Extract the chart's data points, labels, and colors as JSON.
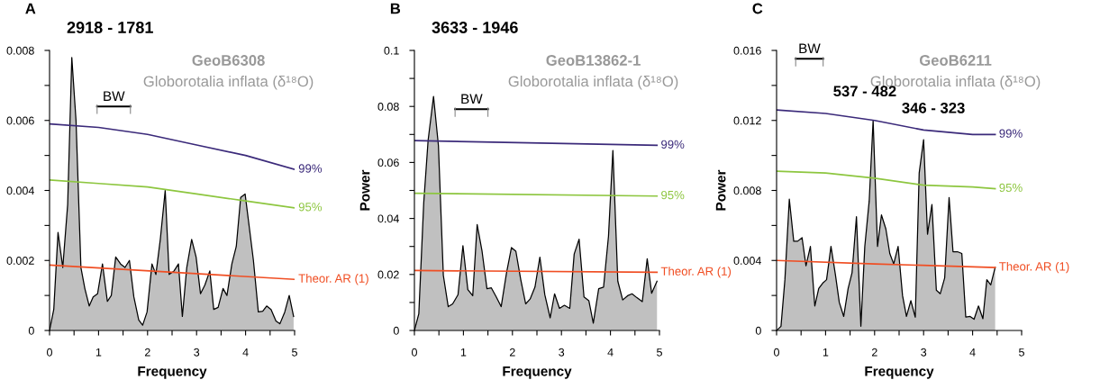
{
  "chart_data": [
    {
      "type": "line",
      "title": "2918 - 1781",
      "xlabel": "Frequency",
      "annotations": [
        "A",
        "GeoB6308",
        "Globorotalia inflata (δ¹⁸O)",
        "BW"
      ],
      "xlim": [
        0,
        5
      ],
      "ylim": [
        0,
        0.008
      ],
      "xticks": [
        0,
        {
          "value": 0.5,
          "label": null
        },
        1,
        {
          "value": 1.5,
          "label": null
        },
        2,
        {
          "value": 2.5,
          "label": null
        },
        3,
        {
          "value": 3.5,
          "label": null
        },
        4,
        {
          "value": 4.5,
          "label": null
        },
        5
      ],
      "yticks": [
        0,
        {
          "value": 0.001,
          "label": null
        },
        0.002,
        {
          "value": 0.003,
          "label": null
        },
        0.004,
        {
          "value": 0.005,
          "label": null
        },
        0.006,
        {
          "value": 0.007,
          "label": null
        },
        0.008
      ],
      "series": [
        {
          "type": "area",
          "color": "#c0c0c0",
          "x": [
            0,
            0.086,
            0.173,
            0.27,
            0.37,
            0.454,
            0.54,
            0.64,
            0.72,
            0.81,
            0.89,
            0.98,
            1.08,
            1.18,
            1.26,
            1.35,
            1.45,
            1.54,
            1.63,
            1.72,
            1.82,
            1.9,
            1.99,
            2.09,
            2.17,
            2.26,
            2.36,
            2.44,
            2.54,
            2.63,
            2.71,
            2.8,
            2.9,
            2.99,
            3.08,
            3.17,
            3.27,
            3.35,
            3.44,
            3.54,
            3.62,
            3.72,
            3.81,
            3.9,
            3.99,
            4.08,
            4.16,
            4.26,
            4.35,
            4.43,
            4.52,
            4.62,
            4.7,
            4.8,
            4.89,
            4.98
          ],
          "values": [
            0,
            0.0006,
            0.0028,
            0.0018,
            0.0036,
            0.0078,
            0.006,
            0.0018,
            0.0012,
            0.0007,
            0.00096,
            0.00105,
            0.0019,
            0.00083,
            0.001,
            0.0021,
            0.0019,
            0.0018,
            0.002,
            0.00096,
            0.0003,
            0.00015,
            0.00053,
            0.0019,
            0.0016,
            0.0026,
            0.004,
            0.0016,
            0.0017,
            0.0019,
            0.0004,
            0.0018,
            0.0026,
            0.0021,
            0.00105,
            0.0013,
            0.0017,
            0.0006,
            0.00066,
            0.0012,
            0.001,
            0.0019,
            0.0024,
            0.0038,
            0.0039,
            0.0029,
            0.002,
            0.00053,
            0.00055,
            0.0007,
            0.0006,
            0.00027,
            0.00019,
            0.00053,
            0.001,
            0.0004
          ]
        },
        {
          "type": "line",
          "name": "99%",
          "color": "#3b2a7a",
          "x": [
            0,
            1,
            2,
            3,
            4,
            5
          ],
          "values": [
            0.0059,
            0.0058,
            0.0056,
            0.0053,
            0.005,
            0.0046
          ]
        },
        {
          "type": "line",
          "name": "95%",
          "color": "#8dc63f",
          "x": [
            0,
            1,
            2,
            3,
            4,
            5
          ],
          "values": [
            0.0043,
            0.0042,
            0.0041,
            0.0039,
            0.0037,
            0.0035
          ]
        },
        {
          "type": "line",
          "name": "Theor. AR (1)",
          "color": "#f04e23",
          "x": [
            0,
            5
          ],
          "values": [
            0.00187,
            0.00146
          ]
        }
      ]
    },
    {
      "type": "line",
      "title": "3633 - 1946",
      "xlabel": "Frequency",
      "ylabel": "Power",
      "annotations": [
        "B",
        "GeoB13862-1",
        "Globorotalia inflata (δ¹⁸O)",
        "BW"
      ],
      "xlim": [
        0,
        5
      ],
      "ylim": [
        0,
        0.1
      ],
      "xticks": [
        0,
        {
          "value": 0.5,
          "label": null
        },
        1,
        {
          "value": 1.5,
          "label": null
        },
        2,
        {
          "value": 2.5,
          "label": null
        },
        3,
        {
          "value": 3.5,
          "label": null
        },
        4,
        {
          "value": 4.5,
          "label": null
        },
        5
      ],
      "yticks": [
        0,
        {
          "value": 0.01,
          "label": null
        },
        0.02,
        {
          "value": 0.03,
          "label": null
        },
        0.04,
        {
          "value": 0.05,
          "label": null
        },
        0.06,
        {
          "value": 0.07,
          "label": null
        },
        0.08,
        {
          "value": 0.09,
          "label": null
        },
        0.1
      ],
      "series": [
        {
          "type": "area",
          "color": "#c0c0c0",
          "x": [
            0,
            0.09,
            0.19,
            0.28,
            0.39,
            0.49,
            0.59,
            0.69,
            0.78,
            0.89,
            0.99,
            1.09,
            1.19,
            1.28,
            1.38,
            1.48,
            1.57,
            1.67,
            1.77,
            1.88,
            1.98,
            2.07,
            2.17,
            2.27,
            2.36,
            2.46,
            2.56,
            2.66,
            2.77,
            2.86,
            2.96,
            3.06,
            3.17,
            3.26,
            3.36,
            3.46,
            3.56,
            3.65,
            3.76,
            3.86,
            3.96,
            4.05,
            4.15,
            4.25,
            4.35,
            4.44,
            4.54,
            4.65,
            4.75,
            4.84,
            4.95
          ],
          "values": [
            0,
            0.006,
            0.0455,
            0.068,
            0.0836,
            0.066,
            0.0197,
            0.0085,
            0.0095,
            0.0128,
            0.0303,
            0.0146,
            0.0124,
            0.0378,
            0.0283,
            0.0149,
            0.0152,
            0.012,
            0.0085,
            0.0206,
            0.0296,
            0.0283,
            0.0181,
            0.0095,
            0.0112,
            0.0155,
            0.0262,
            0.0128,
            0.0045,
            0.0131,
            0.0079,
            0.009,
            0.0079,
            0.0273,
            0.0326,
            0.012,
            0.0106,
            0.0026,
            0.0149,
            0.0155,
            0.0337,
            0.0643,
            0.0176,
            0.0109,
            0.0124,
            0.0131,
            0.0117,
            0.0103,
            0.0256,
            0.0133,
            0.0176
          ]
        },
        {
          "type": "line",
          "name": "99%",
          "color": "#3b2a7a",
          "x": [
            0,
            4.95
          ],
          "values": [
            0.0678,
            0.0661
          ]
        },
        {
          "type": "line",
          "name": "95%",
          "color": "#8dc63f",
          "x": [
            0,
            4.95
          ],
          "values": [
            0.049,
            0.048
          ]
        },
        {
          "type": "line",
          "name": "Theor. AR (1)",
          "color": "#f04e23",
          "x": [
            0,
            4.95
          ],
          "values": [
            0.0214,
            0.0208
          ]
        }
      ]
    },
    {
      "type": "line",
      "xlabel": "Frequency",
      "ylabel": "Power",
      "annotations": [
        "C",
        "GeoB6211",
        "Globorotalia inflata (δ¹⁸O)",
        "BW",
        "537 - 482",
        "346 - 323"
      ],
      "xlim": [
        0,
        5
      ],
      "ylim": [
        0,
        0.016
      ],
      "xticks": [
        0,
        {
          "value": 0.5,
          "label": null
        },
        1,
        {
          "value": 1.5,
          "label": null
        },
        2,
        {
          "value": 2.5,
          "label": null
        },
        3,
        {
          "value": 3.5,
          "label": null
        },
        4,
        {
          "value": 4.5,
          "label": null
        },
        5
      ],
      "yticks": [
        0,
        {
          "value": 0.002,
          "label": null
        },
        0.004,
        {
          "value": 0.006,
          "label": null
        },
        0.008,
        {
          "value": 0.01,
          "label": null
        },
        0.012,
        {
          "value": 0.014,
          "label": null
        },
        0.016
      ],
      "series": [
        {
          "type": "area",
          "color": "#c0c0c0",
          "x": [
            0,
            0.09,
            0.17,
            0.26,
            0.35,
            0.43,
            0.52,
            0.6,
            0.69,
            0.78,
            0.86,
            0.94,
            1.02,
            1.11,
            1.2,
            1.28,
            1.37,
            1.46,
            1.54,
            1.63,
            1.72,
            1.8,
            1.89,
            1.97,
            2.06,
            2.14,
            2.23,
            2.31,
            2.39,
            2.48,
            2.57,
            2.65,
            2.74,
            2.83,
            2.91,
            3.0,
            3.08,
            3.17,
            3.26,
            3.34,
            3.43,
            3.52,
            3.6,
            3.69,
            3.78,
            3.86,
            3.95,
            4.03,
            4.12,
            4.21,
            4.29,
            4.37,
            4.46
          ],
          "values": [
            0,
            0.00024,
            0.0029,
            0.0075,
            0.0051,
            0.0051,
            0.0053,
            0.0037,
            0.0048,
            0.0014,
            0.0024,
            0.0027,
            0.0029,
            0.0048,
            0.0032,
            0.0016,
            0.0008,
            0.0024,
            0.0033,
            0.0065,
            0.00024,
            0.0048,
            0.0074,
            0.012,
            0.0048,
            0.0066,
            0.0058,
            0.0044,
            0.0038,
            0.0048,
            0.002,
            0.0008,
            0.0017,
            0.00076,
            0.009,
            0.0109,
            0.0055,
            0.0072,
            0.0023,
            0.0021,
            0.003,
            0.0076,
            0.0045,
            0.0045,
            0.0044,
            0.00077,
            0.0008,
            0.00064,
            0.0014,
            0.00067,
            0.0029,
            0.0026,
            0.0036
          ]
        },
        {
          "type": "line",
          "name": "99%",
          "color": "#3b2a7a",
          "x": [
            0,
            1,
            2,
            3,
            4,
            4.46
          ],
          "values": [
            0.0126,
            0.0124,
            0.012,
            0.01145,
            0.0112,
            0.0112
          ]
        },
        {
          "type": "line",
          "name": "95%",
          "color": "#8dc63f",
          "x": [
            0,
            1,
            2,
            3,
            4,
            4.46
          ],
          "values": [
            0.0091,
            0.009,
            0.0087,
            0.0083,
            0.0082,
            0.0081
          ]
        },
        {
          "type": "line",
          "name": "Theor. AR (1)",
          "color": "#f04e23",
          "x": [
            0,
            2,
            4.46
          ],
          "values": [
            0.004,
            0.0038,
            0.0036
          ]
        }
      ]
    }
  ]
}
